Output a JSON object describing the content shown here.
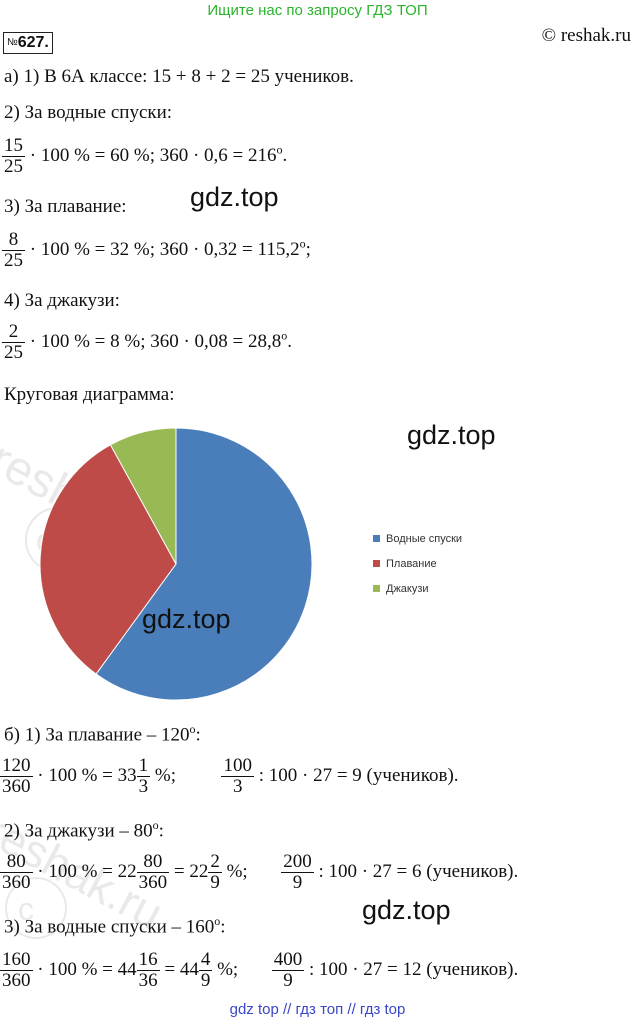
{
  "banner_top": "Ищите нас по запросу ГДЗ ТОП",
  "banner_bottom": "gdz top  //  гдз топ  //  гдз top",
  "problem_number": "627.",
  "problem_prefix": "№",
  "copyright": "© reshak.ru",
  "watermark": "gdz.top",
  "part_a": {
    "line1": "а) 1) В 6А классе:   15 + 8 + 2 = 25 учеников.",
    "h2": "2) За водные спуски:",
    "f2": {
      "num": "15",
      "den": "25",
      "rest": "· 100 % = 60 %;      360 · 0,6 = 216",
      "sup": "о",
      "end": "."
    },
    "h3": "3) За плавание:",
    "f3": {
      "num": "8",
      "den": "25",
      "rest": "· 100 % = 32 %;      360 · 0,32 = 115,2",
      "sup": "о",
      "end": ";"
    },
    "h4": "4) За джакузи:",
    "f4": {
      "num": "2",
      "den": "25",
      "rest": "· 100 % = 8 %;       360 · 0,08 = 28,8",
      "sup": "о",
      "end": "."
    },
    "chart_caption": "Круговая диаграмма:"
  },
  "chart_data": {
    "type": "pie",
    "title": "",
    "legend_position": "right",
    "slices": [
      {
        "name": "Водные спуски",
        "value": 216,
        "color": "#4a7ebb"
      },
      {
        "name": "Плавание",
        "value": 115.2,
        "color": "#be4b48"
      },
      {
        "name": "Джакузи",
        "value": 28.8,
        "color": "#98b954"
      }
    ]
  },
  "part_b": {
    "h1": "б) 1) За плавание – 120",
    "h1_sup": "о",
    "h1_end": ":",
    "l1": {
      "f1_num": "120",
      "f1_den": "360",
      "t1": "· 100 % = 33",
      "m_num": "1",
      "m_den": "3",
      "t2": " %;",
      "f2_num": "100",
      "f2_den": "3",
      "t3": " :  100 · 27 = 9 (учеников)."
    },
    "h2": "2) За джакузи – 80",
    "h2_sup": "о",
    "h2_end": ":",
    "l2": {
      "f1_num": "80",
      "f1_den": "360",
      "t1": "· 100 % = 22",
      "m1_num": "80",
      "m1_den": "360",
      "t2": " = 22",
      "m2_num": "2",
      "m2_den": "9",
      "t3": " %;",
      "f2_num": "200",
      "f2_den": "9",
      "t4": " :  100 · 27 = 6 (учеников)."
    },
    "h3": "3) За водные спуски – 160",
    "h3_sup": "о",
    "h3_end": ":",
    "l3": {
      "f1_num": "160",
      "f1_den": "360",
      "t1": "· 100 % = 44",
      "m1_num": "16",
      "m1_den": "36",
      "t2": " = 44",
      "m2_num": "4",
      "m2_den": "9",
      "t3": " %;",
      "f2_num": "400",
      "f2_den": "9",
      "t4": " :  100 · 27 = 12 (учеников)."
    }
  }
}
